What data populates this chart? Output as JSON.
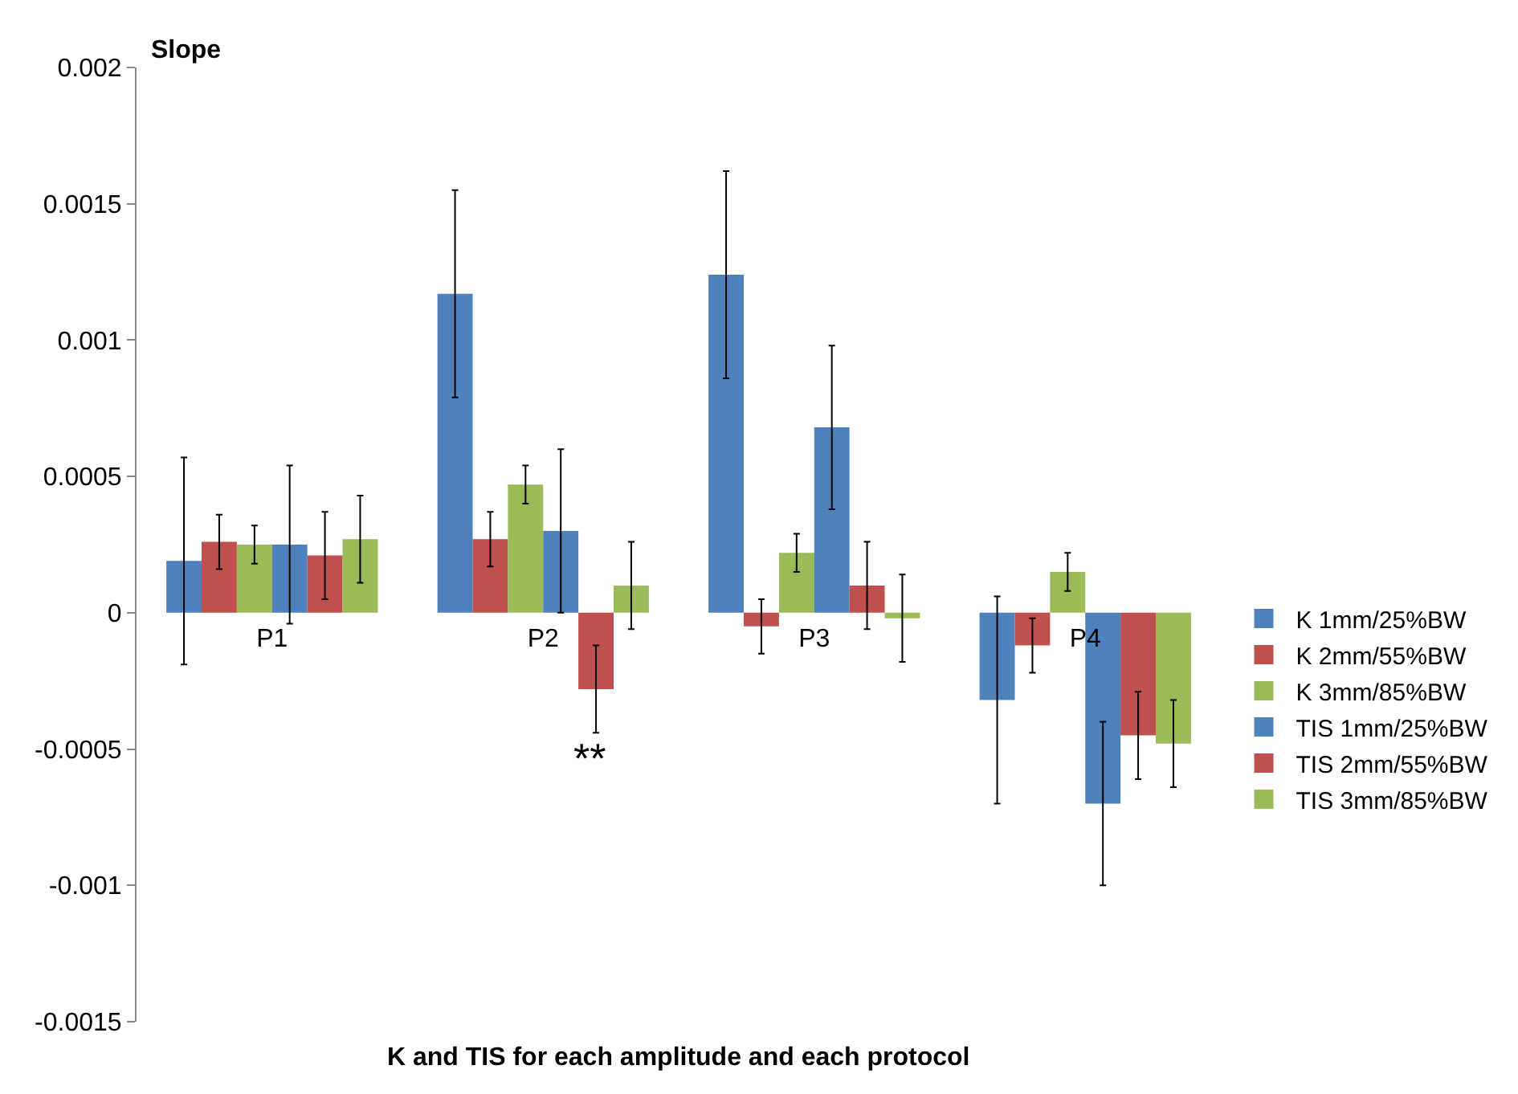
{
  "chart_data": {
    "type": "bar",
    "ylabel": "Slope",
    "xlabel": "K and TIS for each amplitude and each protocol",
    "categories": [
      "P1",
      "P2",
      "P3",
      "P4"
    ],
    "series": [
      {
        "name": "K 1mm/25%BW",
        "color": "#4f81bd",
        "values": [
          0.00019,
          0.00117,
          0.00124,
          -0.00032
        ],
        "errors": [
          0.00038,
          0.00038,
          0.00038,
          0.00038
        ]
      },
      {
        "name": "K 2mm/55%BW",
        "color": "#c0504d",
        "values": [
          0.00026,
          0.00027,
          -5e-05,
          -0.00012
        ],
        "errors": [
          0.0001,
          0.0001,
          0.0001,
          0.0001
        ]
      },
      {
        "name": "K 3mm/85%BW",
        "color": "#9bbb59",
        "values": [
          0.00025,
          0.00047,
          0.00022,
          0.00015
        ],
        "errors": [
          7e-05,
          7e-05,
          7e-05,
          7e-05
        ]
      },
      {
        "name": "TIS 1mm/25%BW",
        "color": "#4f81bd",
        "values": [
          0.00025,
          0.0003,
          0.00068,
          -0.0007
        ],
        "errors": [
          0.00029,
          0.0003,
          0.0003,
          0.0003
        ]
      },
      {
        "name": "TIS 2mm/55%BW",
        "color": "#c0504d",
        "values": [
          0.00021,
          -0.00028,
          0.0001,
          -0.00045
        ],
        "errors": [
          0.00016,
          0.00016,
          0.00016,
          0.00016
        ]
      },
      {
        "name": "TIS 3mm/85%BW",
        "color": "#9bbb59",
        "values": [
          0.00027,
          0.0001,
          -2e-05,
          -0.00048
        ],
        "errors": [
          0.00016,
          0.00016,
          0.00016,
          0.00016
        ]
      }
    ],
    "annotations": [
      "**"
    ],
    "ylim": [
      -0.0015,
      0.002
    ],
    "yticks": [
      -0.0015,
      -0.001,
      -0.0005,
      0,
      0.0005,
      0.001,
      0.0015,
      0.002
    ],
    "grid": false,
    "legend": "right"
  }
}
